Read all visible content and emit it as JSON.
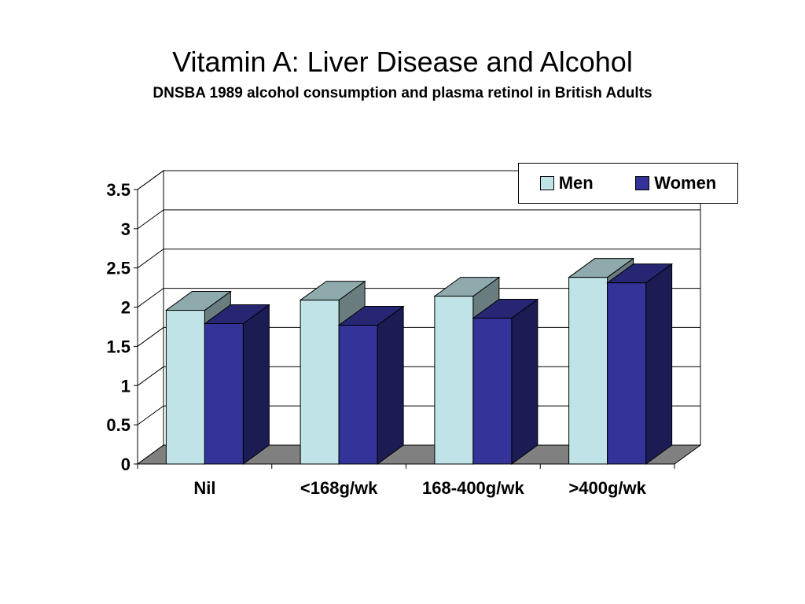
{
  "slide": {
    "title": "Vitamin A: Liver Disease and Alcohol",
    "subtitle": "DNSBA 1989 alcohol consumption and plasma retinol in British Adults"
  },
  "chart_data": {
    "type": "bar",
    "style": "3d-clustered",
    "categories": [
      "Nil",
      "<168g/wk",
      "168-400g/wk",
      ">400g/wk"
    ],
    "series": [
      {
        "name": "Men",
        "values": [
          1.96,
          2.09,
          2.14,
          2.38
        ],
        "color": "#BFE3E6"
      },
      {
        "name": "Women",
        "values": [
          1.79,
          1.77,
          1.86,
          2.31
        ],
        "color": "#333399"
      }
    ],
    "ylim": [
      0,
      3.5
    ],
    "yticks": [
      "0",
      "0.5",
      "1",
      "1.5",
      "2",
      "2.5",
      "3",
      "3.5"
    ],
    "grid": true,
    "legend": "top-right"
  }
}
